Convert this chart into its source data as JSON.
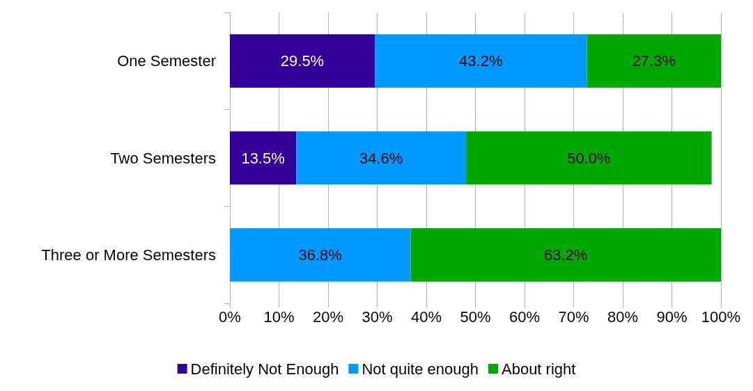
{
  "chart_data": {
    "type": "bar",
    "orientation": "horizontal",
    "stacked": true,
    "categories": [
      "One Semester",
      "Two Semesters",
      "Three or More Semesters"
    ],
    "series": [
      {
        "name": "Definitely Not Enough",
        "color": "#330099",
        "values": [
          29.5,
          13.5,
          null
        ],
        "value_labels": [
          "29.5%",
          "13.5%",
          null
        ]
      },
      {
        "name": "Not quite enough",
        "color": "#0099ff",
        "values": [
          43.2,
          34.6,
          36.8
        ],
        "value_labels": [
          "43.2%",
          "34.6%",
          "36.8%"
        ]
      },
      {
        "name": "About right",
        "color": "#00a800",
        "values": [
          27.3,
          50.0,
          63.2
        ],
        "value_labels": [
          "27.3%",
          "50.0%",
          "63.2%"
        ]
      }
    ],
    "xlim": [
      0,
      100
    ],
    "xticks": [
      {
        "value": 0,
        "label": "0%"
      },
      {
        "value": 10,
        "label": "10%"
      },
      {
        "value": 20,
        "label": "20%"
      },
      {
        "value": 30,
        "label": "30%"
      },
      {
        "value": 40,
        "label": "40%"
      },
      {
        "value": 50,
        "label": "50%"
      },
      {
        "value": 60,
        "label": "60%"
      },
      {
        "value": 70,
        "label": "70%"
      },
      {
        "value": 80,
        "label": "80%"
      },
      {
        "value": 90,
        "label": "90%"
      },
      {
        "value": 100,
        "label": "100%"
      }
    ],
    "grid": "x",
    "legend": "bottom"
  }
}
